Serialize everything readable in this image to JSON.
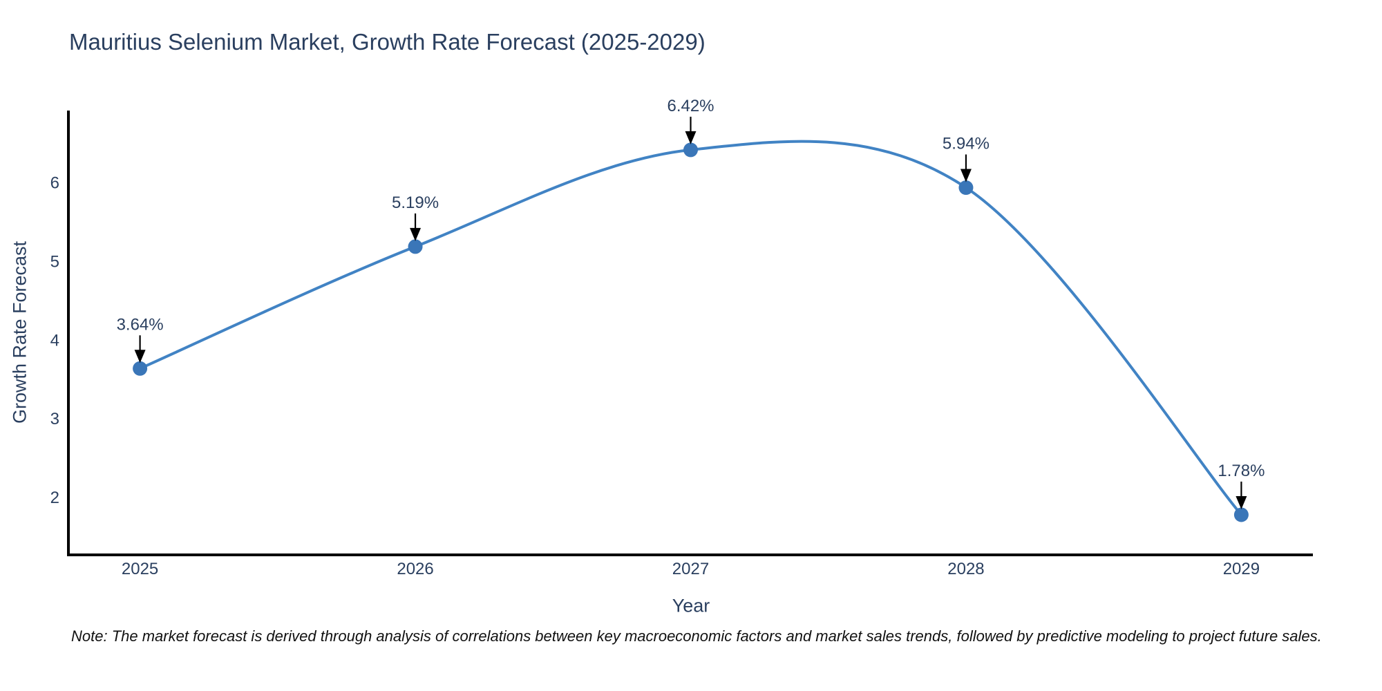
{
  "page": {
    "note": "Note: The market forecast is derived through analysis of correlations between key macroeconomic factors and market sales trends, followed by predictive modeling to project future sales."
  },
  "chart_data": {
    "type": "line",
    "title": "Mauritius Selenium Market, Growth Rate Forecast (2025-2029)",
    "xlabel": "Year",
    "ylabel": "Growth Rate Forecast",
    "categories": [
      2025,
      2026,
      2027,
      2028,
      2029
    ],
    "values": [
      3.64,
      5.19,
      6.42,
      5.94,
      1.78
    ],
    "point_labels": [
      "3.64%",
      "5.19%",
      "6.42%",
      "5.94%",
      "1.78%"
    ],
    "line_shape": "spline",
    "show_markers": true,
    "grid": false,
    "legend": "none",
    "xticks": [
      "2025",
      "2026",
      "2027",
      "2028",
      "2029"
    ],
    "yticks": [
      2,
      3,
      4,
      5,
      6
    ],
    "xlim": [
      2024.74,
      2029.26
    ],
    "ylim": [
      1.27,
      6.92
    ],
    "colors": {
      "line": "#4183c4",
      "marker": "#3a76b8",
      "axis_line": "#000000",
      "tick_text": "#2a3f5f",
      "title_text": "#2a3f5f",
      "annotation_text": "#2a3f5f",
      "arrow": "#000000",
      "note_text": "#111111",
      "background": "#ffffff"
    }
  }
}
